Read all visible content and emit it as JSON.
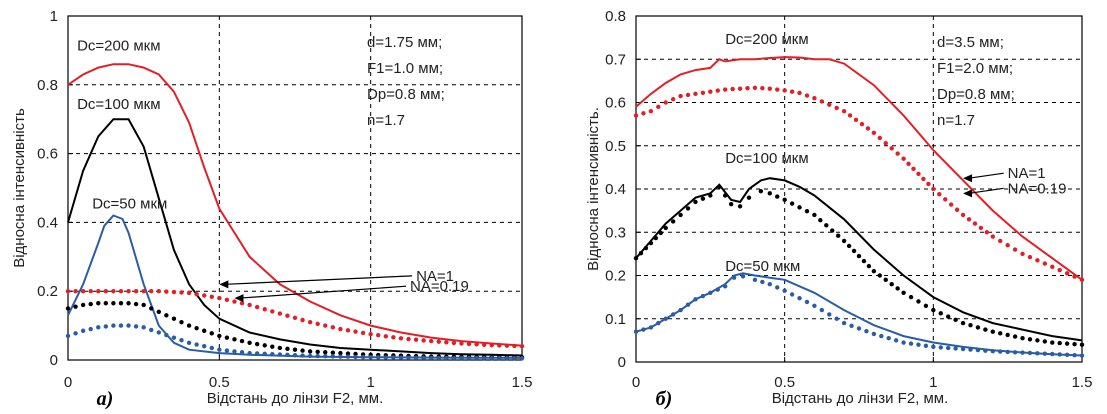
{
  "colors": {
    "red": "#e21f26",
    "black": "#000000",
    "blue": "#2a5ca8"
  },
  "chart_data": [
    {
      "type": "line",
      "panel_label": "a)",
      "xlabel": "Відстань до лінзи  F2, мм.",
      "ylabel": "Відносна  інтенсивність",
      "xlim": [
        0,
        1.5
      ],
      "ylim": [
        0,
        1
      ],
      "x_ticks": [
        "0",
        "0.5",
        "1",
        "1.5"
      ],
      "y_ticks": [
        "0",
        "0.2",
        "0.4",
        "0.6",
        "0.8",
        "1"
      ],
      "grid": true,
      "params": [
        "d=1.75 мм;",
        "F1=1.0 мм;",
        "Dp=0.8 мм;",
        "n=1.7"
      ],
      "curve_labels": [
        {
          "text": "Dc=200 мкм",
          "x": 0.03,
          "y": 0.9
        },
        {
          "text": "Dc=100 мкм",
          "x": 0.03,
          "y": 0.73
        },
        {
          "text": "Dc=50 мкм",
          "x": 0.08,
          "y": 0.44
        }
      ],
      "na_labels": [
        {
          "text": "NA=1",
          "x": 1.15,
          "y": 0.23,
          "arrow_to": [
            0.5,
            0.22
          ]
        },
        {
          "text": "NA=0.19",
          "x": 1.13,
          "y": 0.2,
          "arrow_to": [
            0.55,
            0.18
          ]
        }
      ],
      "series": [
        {
          "color": "red",
          "style": "solid",
          "x": [
            0,
            0.05,
            0.1,
            0.15,
            0.2,
            0.25,
            0.3,
            0.35,
            0.4,
            0.45,
            0.5,
            0.6,
            0.7,
            0.8,
            0.9,
            1.0,
            1.1,
            1.2,
            1.3,
            1.4,
            1.5
          ],
          "y": [
            0.8,
            0.83,
            0.85,
            0.86,
            0.86,
            0.85,
            0.83,
            0.78,
            0.69,
            0.56,
            0.44,
            0.3,
            0.22,
            0.17,
            0.13,
            0.1,
            0.08,
            0.065,
            0.055,
            0.048,
            0.042
          ]
        },
        {
          "color": "black",
          "style": "solid",
          "x": [
            0,
            0.05,
            0.1,
            0.15,
            0.2,
            0.25,
            0.3,
            0.35,
            0.4,
            0.45,
            0.5,
            0.6,
            0.7,
            0.8,
            0.9,
            1.0,
            1.1,
            1.2,
            1.3,
            1.4,
            1.5
          ],
          "y": [
            0.4,
            0.55,
            0.65,
            0.7,
            0.7,
            0.62,
            0.47,
            0.32,
            0.22,
            0.16,
            0.12,
            0.08,
            0.06,
            0.045,
            0.035,
            0.03,
            0.025,
            0.02,
            0.017,
            0.015,
            0.013
          ]
        },
        {
          "color": "blue",
          "style": "solid",
          "x": [
            0,
            0.05,
            0.1,
            0.12,
            0.15,
            0.18,
            0.2,
            0.25,
            0.3,
            0.35,
            0.4,
            0.5,
            0.6,
            0.8,
            1.0,
            1.2,
            1.5
          ],
          "y": [
            0.13,
            0.22,
            0.34,
            0.39,
            0.42,
            0.41,
            0.37,
            0.22,
            0.1,
            0.05,
            0.03,
            0.02,
            0.015,
            0.01,
            0.008,
            0.007,
            0.006
          ]
        },
        {
          "color": "red",
          "style": "dotted",
          "x": [
            0,
            0.1,
            0.2,
            0.3,
            0.4,
            0.5,
            0.6,
            0.7,
            0.8,
            0.9,
            1.0,
            1.1,
            1.2,
            1.3,
            1.4,
            1.5
          ],
          "y": [
            0.2,
            0.2,
            0.2,
            0.2,
            0.195,
            0.18,
            0.16,
            0.135,
            0.11,
            0.09,
            0.075,
            0.063,
            0.055,
            0.048,
            0.043,
            0.04
          ]
        },
        {
          "color": "black",
          "style": "dotted",
          "x": [
            0,
            0.05,
            0.1,
            0.15,
            0.2,
            0.25,
            0.3,
            0.4,
            0.5,
            0.6,
            0.7,
            0.8,
            1.0,
            1.2,
            1.5
          ],
          "y": [
            0.15,
            0.16,
            0.165,
            0.165,
            0.165,
            0.16,
            0.14,
            0.1,
            0.07,
            0.05,
            0.035,
            0.025,
            0.015,
            0.01,
            0.008
          ]
        },
        {
          "color": "blue",
          "style": "dotted",
          "x": [
            0,
            0.05,
            0.1,
            0.15,
            0.2,
            0.25,
            0.3,
            0.4,
            0.5,
            0.6,
            0.8,
            1.0,
            1.2,
            1.5
          ],
          "y": [
            0.07,
            0.085,
            0.095,
            0.1,
            0.1,
            0.095,
            0.08,
            0.05,
            0.03,
            0.02,
            0.012,
            0.008,
            0.006,
            0.005
          ]
        }
      ]
    },
    {
      "type": "line",
      "panel_label": "б)",
      "xlabel": "Відстань до лінзи  F2,  мм.",
      "ylabel": "Відносна інтенсивність.",
      "xlim": [
        0,
        1.5
      ],
      "ylim": [
        0,
        0.8
      ],
      "x_ticks": [
        "0",
        "0.5",
        "1",
        "1.5"
      ],
      "y_ticks": [
        "0",
        "0.1",
        "0.2",
        "0.3",
        "0.4",
        "0.5",
        "0.6",
        "0.7",
        "0.8"
      ],
      "grid": true,
      "params": [
        "d=3.5 мм;",
        "F1=2.0 мм;",
        "Dp=0.8 мм;",
        "n=1.7"
      ],
      "curve_labels": [
        {
          "text": "Dc=200 мкм",
          "x": 0.3,
          "y": 0.735
        },
        {
          "text": "Dc=100 мкм",
          "x": 0.3,
          "y": 0.46
        },
        {
          "text": "Dc=50 мкм",
          "x": 0.3,
          "y": 0.21
        }
      ],
      "na_labels": [
        {
          "text": "NA=1",
          "x": 1.25,
          "y": 0.425,
          "arrow_to": [
            1.1,
            0.425
          ]
        },
        {
          "text": "NA=0.19",
          "x": 1.25,
          "y": 0.39,
          "arrow_to": [
            1.1,
            0.39
          ]
        }
      ],
      "series": [
        {
          "color": "red",
          "style": "solid",
          "x": [
            0,
            0.05,
            0.1,
            0.15,
            0.2,
            0.25,
            0.28,
            0.3,
            0.35,
            0.4,
            0.45,
            0.5,
            0.55,
            0.6,
            0.65,
            0.7,
            0.8,
            0.9,
            1.0,
            1.1,
            1.2,
            1.3,
            1.4,
            1.5
          ],
          "y": [
            0.59,
            0.62,
            0.645,
            0.665,
            0.675,
            0.68,
            0.7,
            0.695,
            0.7,
            0.7,
            0.703,
            0.705,
            0.704,
            0.7,
            0.7,
            0.69,
            0.64,
            0.57,
            0.49,
            0.42,
            0.35,
            0.29,
            0.24,
            0.19
          ]
        },
        {
          "color": "black",
          "style": "solid",
          "x": [
            0,
            0.05,
            0.1,
            0.15,
            0.2,
            0.25,
            0.28,
            0.32,
            0.35,
            0.38,
            0.42,
            0.45,
            0.5,
            0.55,
            0.6,
            0.7,
            0.8,
            0.9,
            1.0,
            1.1,
            1.2,
            1.3,
            1.4,
            1.5
          ],
          "y": [
            0.24,
            0.28,
            0.32,
            0.35,
            0.38,
            0.39,
            0.41,
            0.375,
            0.37,
            0.4,
            0.42,
            0.425,
            0.42,
            0.405,
            0.385,
            0.33,
            0.26,
            0.2,
            0.15,
            0.115,
            0.09,
            0.075,
            0.06,
            0.05
          ]
        },
        {
          "color": "blue",
          "style": "solid",
          "x": [
            0,
            0.05,
            0.1,
            0.15,
            0.2,
            0.25,
            0.3,
            0.33,
            0.36,
            0.4,
            0.45,
            0.5,
            0.6,
            0.7,
            0.8,
            0.9,
            1.0,
            1.1,
            1.2,
            1.3,
            1.4,
            1.5
          ],
          "y": [
            0.07,
            0.08,
            0.1,
            0.12,
            0.145,
            0.16,
            0.18,
            0.2,
            0.205,
            0.2,
            0.195,
            0.19,
            0.16,
            0.12,
            0.085,
            0.06,
            0.045,
            0.035,
            0.027,
            0.022,
            0.018,
            0.015
          ]
        },
        {
          "color": "red",
          "style": "dotted",
          "x": [
            0,
            0.05,
            0.1,
            0.15,
            0.2,
            0.25,
            0.3,
            0.35,
            0.4,
            0.45,
            0.5,
            0.55,
            0.6,
            0.7,
            0.8,
            0.9,
            1.0,
            1.1,
            1.2,
            1.3,
            1.4,
            1.5
          ],
          "y": [
            0.57,
            0.58,
            0.6,
            0.615,
            0.62,
            0.625,
            0.63,
            0.632,
            0.634,
            0.632,
            0.628,
            0.622,
            0.61,
            0.58,
            0.53,
            0.47,
            0.4,
            0.34,
            0.29,
            0.25,
            0.22,
            0.19
          ]
        },
        {
          "color": "black",
          "style": "dotted",
          "x": [
            0,
            0.05,
            0.1,
            0.15,
            0.2,
            0.25,
            0.28,
            0.32,
            0.35,
            0.38,
            0.42,
            0.45,
            0.5,
            0.6,
            0.7,
            0.8,
            0.9,
            1.0,
            1.1,
            1.2,
            1.3,
            1.4,
            1.5
          ],
          "y": [
            0.24,
            0.275,
            0.31,
            0.34,
            0.37,
            0.385,
            0.405,
            0.365,
            0.36,
            0.38,
            0.395,
            0.39,
            0.375,
            0.34,
            0.28,
            0.21,
            0.16,
            0.12,
            0.09,
            0.07,
            0.055,
            0.045,
            0.04
          ]
        },
        {
          "color": "blue",
          "style": "dotted",
          "x": [
            0,
            0.05,
            0.1,
            0.15,
            0.2,
            0.25,
            0.3,
            0.33,
            0.36,
            0.4,
            0.45,
            0.5,
            0.6,
            0.7,
            0.8,
            0.9,
            1.0,
            1.2,
            1.5
          ],
          "y": [
            0.07,
            0.08,
            0.1,
            0.12,
            0.145,
            0.16,
            0.175,
            0.195,
            0.198,
            0.19,
            0.18,
            0.165,
            0.13,
            0.09,
            0.065,
            0.045,
            0.035,
            0.025,
            0.015
          ]
        }
      ]
    }
  ]
}
